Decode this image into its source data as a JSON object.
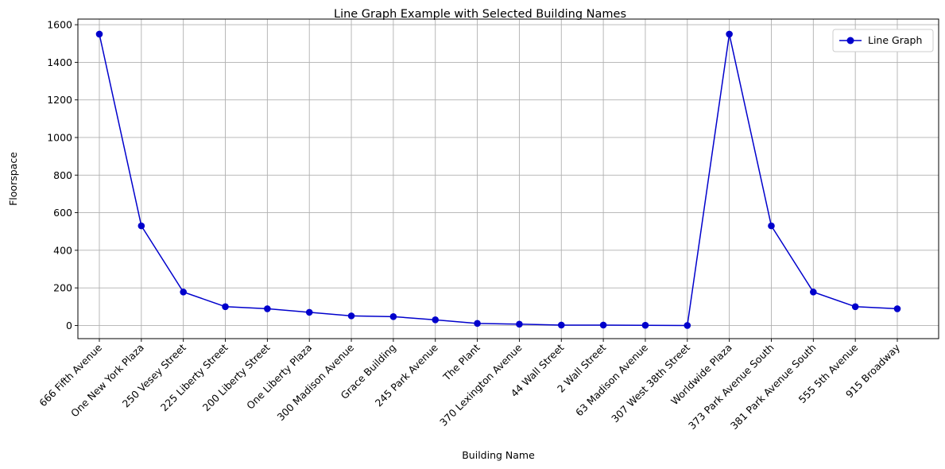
{
  "chart_data": {
    "type": "line",
    "title": "Line Graph Example with Selected Building Names",
    "xlabel": "Building Name",
    "ylabel": "Floorspace",
    "categories": [
      "666 Fifth Avenue",
      "One New York Plaza",
      "250 Vesey Street",
      "225 Liberty Street",
      "200 Liberty Street",
      "One Liberty Plaza",
      "300 Madison Avenue",
      "Grace Building",
      "245 Park Avenue",
      "The Plant",
      "370 Lexington Avenue",
      "44 Wall Street",
      "2 Wall Street",
      "63 Madison Avenue",
      "307 West 38th Street",
      "Worldwide Plaza",
      "373 Park Avenue South",
      "381 Park Avenue South",
      "555 5th Avenue",
      "915 Broadway"
    ],
    "series": [
      {
        "name": "Line Graph",
        "color": "#0000cc",
        "marker": "circle",
        "values": [
          1550,
          530,
          178,
          100,
          89,
          70,
          51,
          47,
          30,
          11,
          7,
          2,
          2,
          1,
          0,
          1550,
          530,
          178,
          100,
          89
        ]
      }
    ],
    "ylim": [
      -70,
      1630
    ],
    "yticks": [
      0,
      200,
      400,
      600,
      800,
      1000,
      1200,
      1400,
      1600
    ],
    "grid": true,
    "legend_position": "top-right"
  }
}
